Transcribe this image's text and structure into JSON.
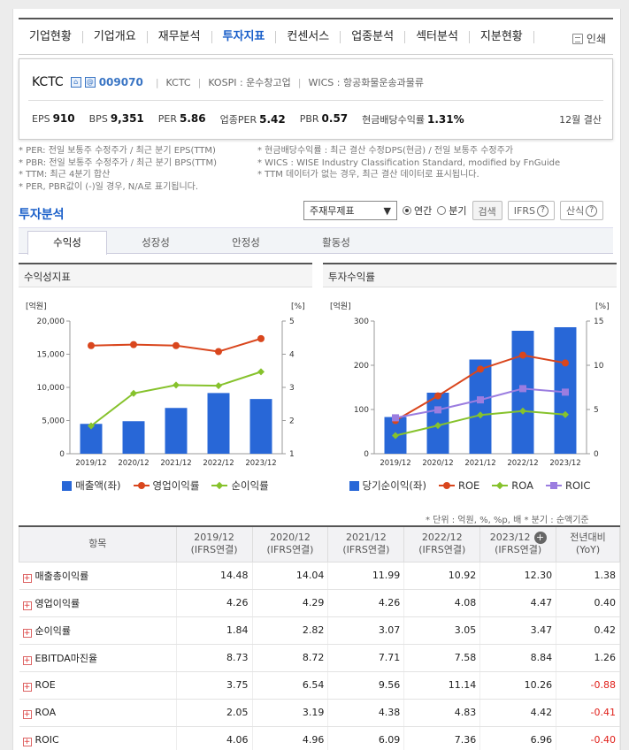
{
  "nav": {
    "items": [
      "기업현황",
      "기업개요",
      "재무분석",
      "투자지표",
      "컨센서스",
      "업종분석",
      "섹터분석",
      "지분현황"
    ],
    "active_index": 3,
    "print_label": "인쇄"
  },
  "company": {
    "name": "KCTC",
    "code": "009070",
    "name2": "KCTC",
    "market": "KOSPI : 운수창고업",
    "wics": "WICS : 항공화물운송과물류",
    "eps_label": "EPS",
    "eps": "910",
    "bps_label": "BPS",
    "bps": "9,351",
    "per_label": "PER",
    "per": "5.86",
    "sector_per_label": "업종PER",
    "sector_per": "5.42",
    "pbr_label": "PBR",
    "pbr": "0.57",
    "div_label": "현금배당수익률",
    "div": "1.31%",
    "settle": "12월 결산"
  },
  "notes_left": [
    "* PER: 전일 보통주 수정주가 / 최근 분기 EPS(TTM)",
    "* PBR: 전일 보통주 수정주가 / 최근 분기 BPS(TTM)",
    "* TTM: 최근 4분기 합산",
    "* PER, PBR값이 (-)일 경우, N/A로 표기됩니다."
  ],
  "notes_right": [
    "* 현금배당수익률 : 최근 결산 수정DPS(현금) / 전일 보통주 수정주가",
    "* WICS : WISE Industry Classification Standard, modified by FnGuide",
    "* TTM 데이터가 없는 경우, 최근 결산 데이터로 표시됩니다."
  ],
  "section_title": "투자분석",
  "controls": {
    "select_value": "주재무제표",
    "radio_annual": "연간",
    "radio_quarter": "분기",
    "search": "검색",
    "ifrs": "IFRS",
    "formula": "산식"
  },
  "tabs": [
    "수익성",
    "성장성",
    "안정성",
    "활동성"
  ],
  "chart_data": [
    {
      "type": "bar",
      "title": "수익성지표",
      "categories": [
        "2019/12",
        "2020/12",
        "2021/12",
        "2022/12",
        "2023/12"
      ],
      "ylabel_left": "[억원]",
      "ylabel_right": "[%]",
      "ylim_left": [
        0,
        20000
      ],
      "yticks_left": [
        "0",
        "5,000",
        "10,000",
        "15,000",
        "20,000"
      ],
      "ylim_right": [
        1,
        5
      ],
      "yticks_right": [
        "1",
        "2",
        "3",
        "4",
        "5"
      ],
      "series": [
        {
          "name": "매출액(좌)",
          "kind": "bar",
          "axis": "left",
          "color": "#2867d7",
          "values": [
            4500,
            4900,
            6900,
            9150,
            8250
          ]
        },
        {
          "name": "영업이익률",
          "kind": "line",
          "axis": "right",
          "color": "#d9461d",
          "values": [
            4.26,
            4.29,
            4.26,
            4.08,
            4.47
          ]
        },
        {
          "name": "순이익률",
          "kind": "line",
          "axis": "right",
          "color": "#86c22c",
          "values": [
            1.84,
            2.82,
            3.07,
            3.05,
            3.47
          ]
        }
      ]
    },
    {
      "type": "bar",
      "title": "투자수익률",
      "categories": [
        "2019/12",
        "2020/12",
        "2021/12",
        "2022/12",
        "2023/12"
      ],
      "ylabel_left": "[억원]",
      "ylabel_right": "[%]",
      "ylim_left": [
        0,
        300
      ],
      "yticks_left": [
        "0",
        "100",
        "200",
        "300"
      ],
      "ylim_right": [
        0,
        15
      ],
      "yticks_right": [
        "0",
        "5",
        "10",
        "15"
      ],
      "series": [
        {
          "name": "당기순이익(좌)",
          "kind": "bar",
          "axis": "left",
          "color": "#2867d7",
          "values": [
            83,
            138,
            213,
            278,
            286
          ]
        },
        {
          "name": "ROE",
          "kind": "line",
          "axis": "right",
          "color": "#d9461d",
          "values": [
            3.75,
            6.54,
            9.56,
            11.14,
            10.26
          ]
        },
        {
          "name": "ROA",
          "kind": "line",
          "axis": "right",
          "color": "#86c22c",
          "values": [
            2.05,
            3.19,
            4.38,
            4.83,
            4.42
          ]
        },
        {
          "name": "ROIC",
          "kind": "line",
          "axis": "right",
          "color": "#9b7de0",
          "values": [
            4.06,
            4.96,
            6.09,
            7.36,
            6.96
          ]
        }
      ]
    }
  ],
  "unit_note": "* 단위 : 억원, %, %p, 배     * 분기 : 순액기준",
  "table": {
    "col_item": "항목",
    "years": [
      "2019/12",
      "2020/12",
      "2021/12",
      "2022/12",
      "2023/12"
    ],
    "sub": "(IFRS연결)",
    "yoy_1": "전년대비",
    "yoy_2": "(YoY)",
    "rows": [
      {
        "label": "매출총이익률",
        "values": [
          "14.48",
          "14.04",
          "11.99",
          "10.92",
          "12.30"
        ],
        "yoy": "1.38",
        "neg": false
      },
      {
        "label": "영업이익률",
        "values": [
          "4.26",
          "4.29",
          "4.26",
          "4.08",
          "4.47"
        ],
        "yoy": "0.40",
        "neg": false
      },
      {
        "label": "순이익률",
        "values": [
          "1.84",
          "2.82",
          "3.07",
          "3.05",
          "3.47"
        ],
        "yoy": "0.42",
        "neg": false
      },
      {
        "label": "EBITDA마진율",
        "values": [
          "8.73",
          "8.72",
          "7.71",
          "7.58",
          "8.84"
        ],
        "yoy": "1.26",
        "neg": false
      },
      {
        "label": "ROE",
        "values": [
          "3.75",
          "6.54",
          "9.56",
          "11.14",
          "10.26"
        ],
        "yoy": "-0.88",
        "neg": true
      },
      {
        "label": "ROA",
        "values": [
          "2.05",
          "3.19",
          "4.38",
          "4.83",
          "4.42"
        ],
        "yoy": "-0.41",
        "neg": true
      },
      {
        "label": "ROIC",
        "values": [
          "4.06",
          "4.96",
          "6.09",
          "7.36",
          "6.96"
        ],
        "yoy": "-0.40",
        "neg": true
      }
    ]
  }
}
